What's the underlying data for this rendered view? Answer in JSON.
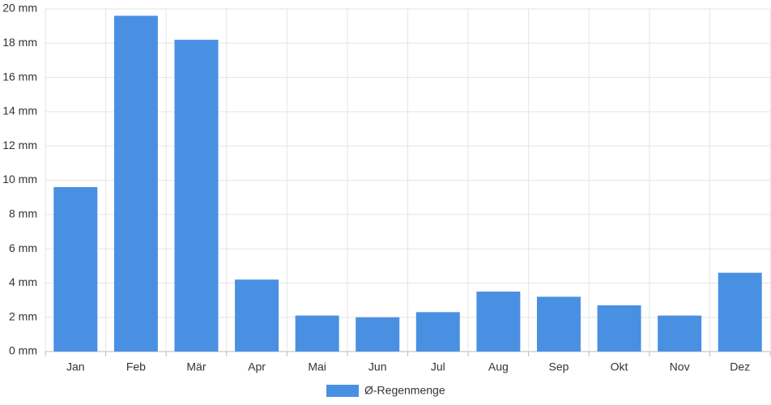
{
  "chart_data": {
    "type": "bar",
    "categories": [
      "Jan",
      "Feb",
      "Mär",
      "Apr",
      "Mai",
      "Jun",
      "Jul",
      "Aug",
      "Sep",
      "Okt",
      "Nov",
      "Dez"
    ],
    "series": [
      {
        "name": "Ø-Regenmenge",
        "color": "#4a90e2",
        "values": [
          9.6,
          19.6,
          18.2,
          4.2,
          2.1,
          2.0,
          2.3,
          3.5,
          3.2,
          2.7,
          2.1,
          4.6
        ]
      }
    ],
    "ylim": [
      0,
      20
    ],
    "yticks": [
      {
        "value": 0,
        "label": "0 mm"
      },
      {
        "value": 2,
        "label": "2 mm"
      },
      {
        "value": 4,
        "label": "4 mm"
      },
      {
        "value": 6,
        "label": "6 mm"
      },
      {
        "value": 8,
        "label": "8 mm"
      },
      {
        "value": 10,
        "label": "10 mm"
      },
      {
        "value": 12,
        "label": "12 mm"
      },
      {
        "value": 14,
        "label": "14 mm"
      },
      {
        "value": 16,
        "label": "16 mm"
      },
      {
        "value": 18,
        "label": "18 mm"
      },
      {
        "value": 20,
        "label": "20 mm"
      }
    ],
    "grid": true,
    "legend": "bottom"
  }
}
